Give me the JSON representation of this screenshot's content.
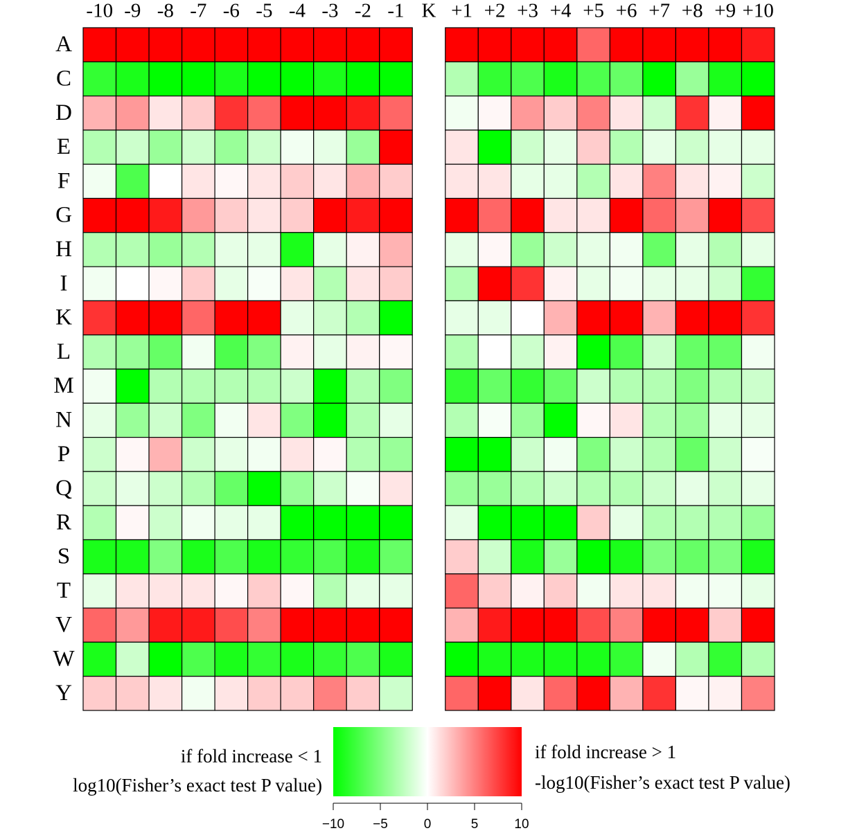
{
  "chart_data": {
    "type": "heatmap",
    "x": [
      "-10",
      "-9",
      "-8",
      "-7",
      "-6",
      "-5",
      "-4",
      "-3",
      "-2",
      "-1",
      "K",
      "+1",
      "+2",
      "+3",
      "+4",
      "+5",
      "+6",
      "+7",
      "+8",
      "+9",
      "+10"
    ],
    "y": [
      "A",
      "C",
      "D",
      "E",
      "F",
      "G",
      "H",
      "I",
      "K",
      "L",
      "M",
      "N",
      "P",
      "Q",
      "R",
      "S",
      "T",
      "V",
      "W",
      "Y"
    ],
    "values": [
      [
        10,
        10,
        10,
        10,
        10,
        10,
        10,
        10,
        10,
        10,
        null,
        10,
        10,
        10,
        10,
        6,
        10,
        10,
        10,
        10,
        9
      ],
      [
        -8,
        -9,
        -10,
        -10,
        -9,
        -10,
        -10,
        -9,
        -10,
        -10,
        null,
        -3,
        -8,
        -7,
        -9,
        -7,
        -6,
        -10,
        -4,
        -9,
        -10
      ],
      [
        3,
        4,
        1,
        2,
        8,
        6,
        10,
        10,
        9,
        6,
        null,
        -0.5,
        0.3,
        4,
        2,
        5,
        1,
        -2,
        8,
        0.5,
        10
      ],
      [
        -3,
        -2,
        -4,
        -2,
        -4,
        -2,
        -0.5,
        -1,
        -4,
        10,
        null,
        1,
        -10,
        -2,
        -1,
        2,
        -3,
        -1,
        -2,
        -1,
        -1
      ],
      [
        -0.5,
        -7,
        0,
        1,
        0.3,
        1,
        2,
        1,
        3,
        2,
        null,
        1,
        1,
        -1,
        -1,
        -3,
        1,
        5,
        1,
        0.5,
        -2
      ],
      [
        10,
        10,
        9,
        4,
        2,
        1,
        2,
        10,
        9,
        10,
        null,
        10,
        6,
        10,
        1,
        1,
        10,
        6,
        4,
        10,
        7
      ],
      [
        -3,
        -3,
        -4,
        -3,
        -1,
        -1,
        -9,
        -1,
        0.5,
        3,
        null,
        -1,
        0.3,
        -4,
        -2,
        -1,
        -0.5,
        -6,
        -1,
        -3,
        -1
      ],
      [
        -0.5,
        0,
        0.3,
        2,
        -1,
        -0.3,
        1,
        -3,
        1,
        2,
        null,
        -3,
        10,
        8,
        0.5,
        -1,
        -0.5,
        -1,
        -1,
        -2,
        -8
      ],
      [
        8,
        10,
        10,
        6,
        10,
        10,
        -1,
        -2,
        -3,
        -10,
        null,
        -1,
        -1,
        0,
        3,
        10,
        10,
        3,
        10,
        10,
        8
      ],
      [
        -3,
        -4,
        -6,
        -0.5,
        -7,
        -5,
        0.5,
        -1,
        0.5,
        0.3,
        null,
        -3,
        0,
        -2,
        0.5,
        -10,
        -7,
        -2,
        -6,
        -6,
        -0.5
      ],
      [
        -0.5,
        -10,
        -3,
        -3,
        -3,
        -3,
        -2,
        -10,
        -3,
        -5,
        null,
        -8,
        -6,
        -8,
        -6,
        -2,
        -3,
        -3,
        -5,
        -3,
        -2
      ],
      [
        -1,
        -4,
        -2,
        -5,
        -0.5,
        1,
        -5,
        -10,
        -3,
        -1,
        null,
        -3,
        -0.3,
        -4,
        -10,
        0.3,
        1,
        -3,
        -4,
        -1,
        -1
      ],
      [
        -2,
        0.3,
        3,
        -2,
        -1,
        -0.5,
        1,
        0.3,
        -3,
        -4,
        null,
        -10,
        -10,
        -2,
        -0.5,
        -5,
        -2,
        -3,
        -6,
        -2,
        -0.3
      ],
      [
        -2,
        -1,
        -2,
        -3,
        -6,
        -10,
        -4,
        -2,
        -0.3,
        1,
        null,
        -4,
        -4,
        -3,
        -2,
        -3,
        -3,
        -2,
        -1,
        -2,
        -1
      ],
      [
        -3,
        0.3,
        -2,
        -0.5,
        -1,
        -1,
        -10,
        -10,
        -10,
        -10,
        null,
        -1,
        -10,
        -10,
        -10,
        2,
        -1,
        -3,
        -3,
        -3,
        -4
      ],
      [
        -9,
        -9,
        -5,
        -9,
        -7,
        -9,
        -8,
        -7,
        -9,
        -6,
        null,
        2,
        -2,
        -9,
        -4,
        -10,
        -9,
        -5,
        -6,
        -5,
        -9
      ],
      [
        -1,
        1,
        1,
        1,
        0.3,
        2,
        0.3,
        -3,
        -1,
        -1,
        null,
        6,
        2,
        0.5,
        2,
        -0.5,
        1,
        1,
        -0.5,
        -0.5,
        -1
      ],
      [
        6,
        4,
        9,
        9,
        7,
        5,
        10,
        10,
        10,
        10,
        null,
        3,
        9,
        10,
        10,
        7,
        5,
        10,
        10,
        2,
        10
      ],
      [
        -9,
        -2,
        -10,
        -7,
        -9,
        -8,
        -9,
        -8,
        -7,
        -9,
        null,
        -10,
        -9,
        -9,
        -9,
        -9,
        -8,
        -0.5,
        -3,
        -8,
        -3
      ],
      [
        2,
        2,
        1,
        -0.5,
        1,
        2,
        2,
        5,
        2,
        -2,
        null,
        6,
        10,
        1,
        6,
        10,
        3,
        8,
        0.3,
        0.5,
        5
      ]
    ],
    "colors": [
      "#00ff00",
      "#ffffff",
      "#ff0000"
    ],
    "zlim": [
      -10,
      10
    ],
    "zticks": [
      {
        "value": -10,
        "label": "−10"
      },
      {
        "value": -5,
        "label": "−5"
      },
      0,
      5,
      10
    ],
    "annotations": [
      "if fold increase < 1",
      "log10(Fisher’s exact test P value)",
      "if fold increase > 1",
      "-log10(Fisher’s exact test P value)"
    ]
  }
}
